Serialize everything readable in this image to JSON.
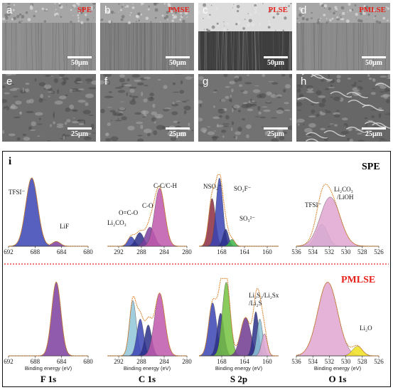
{
  "sem_panels": [
    {
      "letter": "a",
      "label": "SPE",
      "scale": "50μm",
      "kind": "cross",
      "style": "smooth"
    },
    {
      "letter": "b",
      "label": "PMSE",
      "scale": "50μm",
      "kind": "cross",
      "style": "rough"
    },
    {
      "letter": "c",
      "label": "PLSE",
      "scale": "50μm",
      "kind": "cross",
      "style": "layer"
    },
    {
      "letter": "d",
      "label": "PMLSE",
      "scale": "50μm",
      "kind": "cross",
      "style": "light"
    },
    {
      "letter": "e",
      "label": "",
      "scale": "25μm",
      "kind": "surface",
      "style": "porous"
    },
    {
      "letter": "f",
      "label": "",
      "scale": "25μm",
      "kind": "surface",
      "style": "flaky"
    },
    {
      "letter": "g",
      "label": "",
      "scale": "25μm",
      "kind": "surface",
      "style": "granular"
    },
    {
      "letter": "h",
      "label": "",
      "scale": "25μm",
      "kind": "surface",
      "style": "ridged"
    }
  ],
  "xps": {
    "panel_letter": "i",
    "sample_top": "SPE",
    "sample_bottom": "PMLSE",
    "sample_bottom_color": "#e8211b",
    "divider_color": "#e8211b",
    "xlabel": "Binding energy (eV)",
    "spectra": [
      "F 1s",
      "C 1s",
      "S 2p",
      "O 1s"
    ],
    "chart_data": [
      {
        "type": "line",
        "name": "F 1s SPE",
        "xrange": [
          692,
          680
        ],
        "ticks": [
          692,
          688,
          684,
          680
        ],
        "peaks": [
          {
            "label": "TFSI⁻",
            "center": 688.5,
            "height": 1.0,
            "width": 0.9,
            "color": "#3a43b4"
          },
          {
            "label": "LiF",
            "center": 684.8,
            "height": 0.07,
            "width": 0.6,
            "color": "#7d3e9e"
          }
        ]
      },
      {
        "type": "line",
        "name": "C 1s SPE",
        "xrange": [
          294,
          280
        ],
        "ticks": [
          292,
          288,
          284,
          280
        ],
        "peaks": [
          {
            "label": "Li₂CO₃",
            "center": 289.8,
            "height": 0.14,
            "width": 0.6,
            "color": "#3a43b4"
          },
          {
            "label": "O=C-O",
            "center": 288.3,
            "height": 0.2,
            "width": 0.7,
            "color": "#2a2f8a"
          },
          {
            "label": "C-O",
            "center": 286.5,
            "height": 0.28,
            "width": 0.8,
            "color": "#7d3e9e"
          },
          {
            "label": "C-C/C-H",
            "center": 284.8,
            "height": 0.85,
            "width": 0.9,
            "color": "#c058ab"
          }
        ]
      },
      {
        "type": "line",
        "name": "S 2p SPE",
        "xrange": [
          172,
          158
        ],
        "ticks": [
          168,
          164,
          160
        ],
        "peaks": [
          {
            "label": "NSO₂⁻",
            "center": 169.7,
            "height": 0.7,
            "width": 0.6,
            "color": "#8b2d3f"
          },
          {
            "label": "SO₂F⁻",
            "center": 168.4,
            "height": 1.0,
            "width": 0.6,
            "color": "#3a43b4"
          },
          {
            "label": "",
            "center": 167.3,
            "height": 0.25,
            "width": 0.5,
            "color": "#2a2f8a"
          },
          {
            "label": "SO₃²⁻",
            "center": 166.2,
            "height": 0.1,
            "width": 0.5,
            "color": "#3cb54a"
          }
        ]
      },
      {
        "type": "line",
        "name": "O 1s SPE",
        "xrange": [
          536,
          526
        ],
        "ticks": [
          536,
          534,
          532,
          530,
          528,
          526
        ],
        "peaks": [
          {
            "label": "TFSI⁻",
            "center": 532.9,
            "height": 0.32,
            "width": 0.7,
            "color": "#8fc5d8"
          },
          {
            "label": "Li₂CO₃/LiOH",
            "center": 531.9,
            "height": 0.72,
            "width": 1.2,
            "color": "#e2a6d1"
          }
        ]
      },
      {
        "type": "line",
        "name": "F 1s PMLSE",
        "xrange": [
          692,
          680
        ],
        "ticks": [
          692,
          688,
          684,
          680
        ],
        "peaks": [
          {
            "label": "",
            "center": 684.8,
            "height": 1.0,
            "width": 0.7,
            "color": "#7d3e9e"
          }
        ]
      },
      {
        "type": "line",
        "name": "C 1s PMLSE",
        "xrange": [
          294,
          280
        ],
        "ticks": [
          292,
          288,
          284,
          280
        ],
        "peaks": [
          {
            "label": "",
            "center": 289.5,
            "height": 0.75,
            "width": 0.6,
            "color": "#8fc5d8"
          },
          {
            "label": "",
            "center": 288.2,
            "height": 0.5,
            "width": 0.6,
            "color": "#3a43b4"
          },
          {
            "label": "",
            "center": 286.8,
            "height": 0.42,
            "width": 0.6,
            "color": "#2a2f8a"
          },
          {
            "label": "",
            "center": 284.8,
            "height": 0.85,
            "width": 0.9,
            "color": "#c058ab"
          }
        ]
      },
      {
        "type": "line",
        "name": "S 2p PMLSE",
        "xrange": [
          172,
          158
        ],
        "ticks": [
          168,
          164,
          160
        ],
        "peaks": [
          {
            "label": "",
            "center": 169.6,
            "height": 0.72,
            "width": 0.7,
            "color": "#3a43b4"
          },
          {
            "label": "",
            "center": 168.2,
            "height": 0.58,
            "width": 0.6,
            "color": "#2a2f8a"
          },
          {
            "label": "",
            "center": 167.2,
            "height": 1.0,
            "width": 0.7,
            "color": "#75c241"
          },
          {
            "label": "Li₂S₂/Li₂Sx/Li₂S",
            "center": 163.8,
            "height": 0.52,
            "width": 0.9,
            "color": "#6f3a8f"
          },
          {
            "label": "",
            "center": 162.0,
            "height": 0.6,
            "width": 0.5,
            "color": "#2a2f8a"
          },
          {
            "label": "",
            "center": 161.3,
            "height": 0.5,
            "width": 0.5,
            "color": "#8fc5d8"
          },
          {
            "label": "",
            "center": 160.5,
            "height": 0.3,
            "width": 0.5,
            "color": "#e2a6d1"
          }
        ]
      },
      {
        "type": "line",
        "name": "O 1s PMLSE",
        "xrange": [
          536,
          526
        ],
        "ticks": [
          536,
          534,
          532,
          530,
          528,
          526
        ],
        "peaks": [
          {
            "label": "",
            "center": 532.2,
            "height": 1.0,
            "width": 1.2,
            "color": "#e2a6d1"
          },
          {
            "label": "Li₂O",
            "center": 528.6,
            "height": 0.13,
            "width": 0.6,
            "color": "#f0e020"
          }
        ]
      }
    ]
  }
}
